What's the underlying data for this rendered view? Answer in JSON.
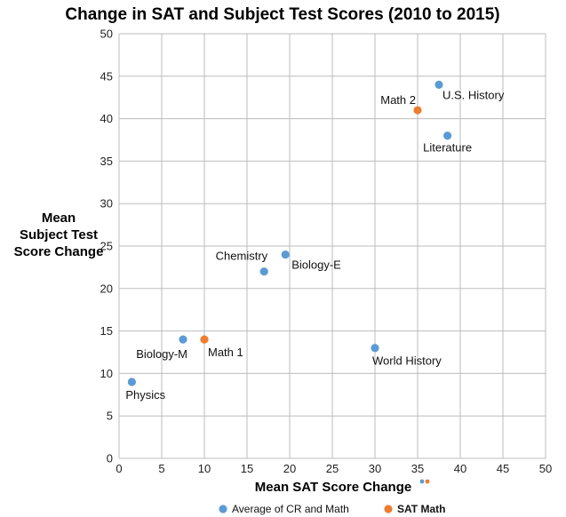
{
  "chart_data": {
    "type": "scatter",
    "title": "Change in SAT and Subject Test Scores (2010 to 2015)",
    "xlabel": "Mean SAT Score Change",
    "ylabel": [
      "Mean",
      "Subject Test",
      "Score Change"
    ],
    "xlim": [
      0,
      50
    ],
    "ylim": [
      0,
      50
    ],
    "xticks": [
      0,
      5,
      10,
      15,
      20,
      25,
      30,
      35,
      40,
      45,
      50
    ],
    "yticks": [
      0,
      5,
      10,
      15,
      20,
      25,
      30,
      35,
      40,
      45,
      50
    ],
    "grid": true,
    "legend_position": "bottom",
    "series": [
      {
        "name": "Average of CR and Math",
        "color": "#5b9bd5",
        "points": [
          {
            "label": "U.S. History",
            "x": 37.5,
            "y": 44
          },
          {
            "label": "Literature",
            "x": 38.5,
            "y": 38
          },
          {
            "label": "Biology-E",
            "x": 19.5,
            "y": 24
          },
          {
            "label": "Chemistry",
            "x": 17,
            "y": 22
          },
          {
            "label": "Biology-M",
            "x": 7.5,
            "y": 14
          },
          {
            "label": "World History",
            "x": 30,
            "y": 13
          },
          {
            "label": "Physics",
            "x": 1.5,
            "y": 9
          }
        ]
      },
      {
        "name": "SAT Math",
        "color": "#ed7d31",
        "points": [
          {
            "label": "Math 2",
            "x": 35,
            "y": 41
          },
          {
            "label": "Math 1",
            "x": 10,
            "y": 14
          }
        ]
      }
    ]
  }
}
